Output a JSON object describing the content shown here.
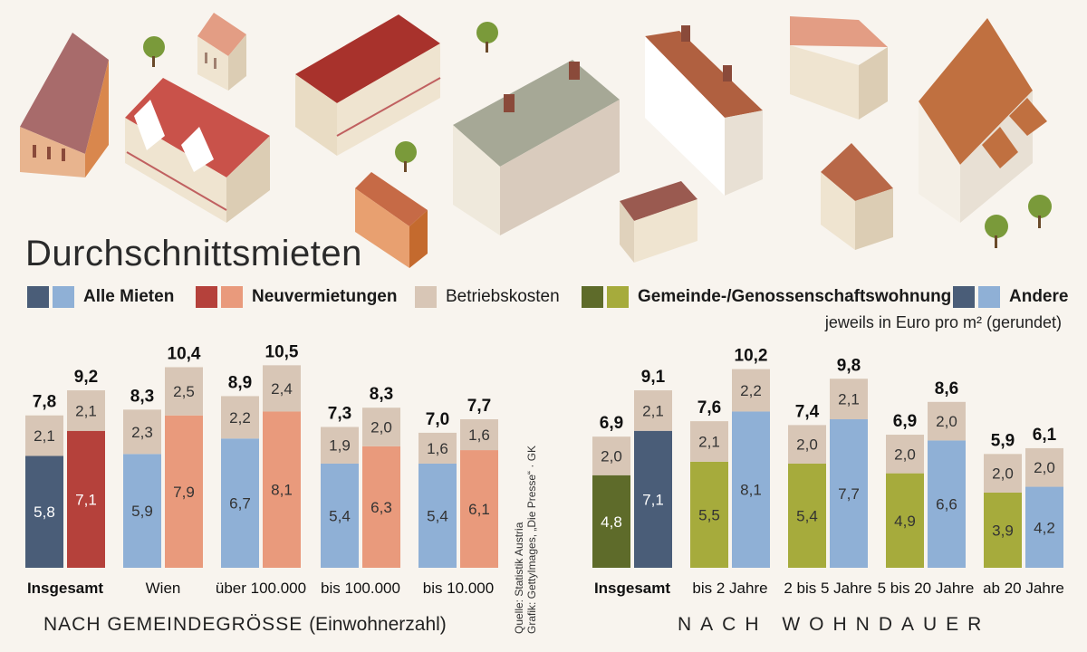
{
  "title": "Durchschnittsmieten",
  "legend": [
    {
      "label": "Alle Mieten",
      "colors": [
        "#4a5d78",
        "#8fb0d6"
      ],
      "bold": true
    },
    {
      "label": "Neuvermietungen",
      "colors": [
        "#b5413b",
        "#e99a7c"
      ],
      "bold": true
    },
    {
      "label": "Betriebskosten",
      "colors": [
        "#d8c6b6"
      ],
      "bold": false
    },
    {
      "label": "Gemeinde-/Genossenschaftswohnung",
      "colors": [
        "#5e6b2a",
        "#a6ab3c"
      ],
      "bold": true
    },
    {
      "label": "Andere",
      "colors": [
        "#4a5d78",
        "#8fb0d6"
      ],
      "bold": true
    }
  ],
  "units_note": "jeweils in Euro pro m² (gerundet)",
  "section1_title": "NACH GEMEINDEGRÖSSE",
  "section1_subtitle": "(Einwohnerzahl)",
  "section2_title": "NACH WOHNDAUER",
  "source_line1": "Quelle: Statistik Austria",
  "source_line2": "Grafik: GettyImages, „Die Presse“ · GK",
  "colors": {
    "betriebskosten": "#d8c6b6",
    "alle_dark": "#4a5d78",
    "alle_light": "#8fb0d6",
    "neu_dark": "#b5413b",
    "neu_light": "#e99a7c",
    "gem_dark": "#5e6b2a",
    "gem_light": "#a6ab3c",
    "andere_dark": "#4a5d78",
    "andere_light": "#8fb0d6"
  },
  "chart_data": [
    {
      "type": "bar",
      "stacked": true,
      "title": "NACH GEMEINDEGRÖSSE (Einwohnerzahl)",
      "categories": [
        "Insgesamt",
        "Wien",
        "über 100.000",
        "bis 100.000",
        "bis 10.000"
      ],
      "category_bold": [
        true,
        false,
        false,
        false,
        false
      ],
      "series": [
        {
          "name": "Alle Mieten",
          "miete": [
            5.8,
            5.9,
            6.7,
            5.4,
            5.4
          ],
          "betriebskosten": [
            2.1,
            2.3,
            2.2,
            1.9,
            1.6
          ],
          "total": [
            "7,8",
            "8,3",
            "8,9",
            "7,3",
            "7,0"
          ],
          "miete_labels": [
            "5,8",
            "5,9",
            "6,7",
            "5,4",
            "5,4"
          ],
          "bk_labels": [
            "2,1",
            "2,3",
            "2,2",
            "1,9",
            "1,6"
          ],
          "color_key": "alle"
        },
        {
          "name": "Neuvermietungen",
          "miete": [
            7.1,
            7.9,
            8.1,
            6.3,
            6.1
          ],
          "betriebskosten": [
            2.1,
            2.5,
            2.4,
            2.0,
            1.6
          ],
          "total": [
            "9,2",
            "10,4",
            "10,5",
            "8,3",
            "7,7"
          ],
          "miete_labels": [
            "7,1",
            "7,9",
            "8,1",
            "6,3",
            "6,1"
          ],
          "bk_labels": [
            "2,1",
            "2,5",
            "2,4",
            "2,0",
            "1,6"
          ],
          "color_key": "neu"
        }
      ]
    },
    {
      "type": "bar",
      "stacked": true,
      "title": "NACH WOHNDAUER",
      "categories": [
        "Insgesamt",
        "bis 2 Jahre",
        "2 bis 5 Jahre",
        "5 bis 20 Jahre",
        "ab 20 Jahre"
      ],
      "category_bold": [
        true,
        false,
        false,
        false,
        false
      ],
      "series": [
        {
          "name": "Gemeinde-/Genossenschaftswohnung",
          "miete": [
            4.8,
            5.5,
            5.4,
            4.9,
            3.9
          ],
          "betriebskosten": [
            2.0,
            2.1,
            2.0,
            2.0,
            2.0
          ],
          "total": [
            "6,9",
            "7,6",
            "7,4",
            "6,9",
            "5,9"
          ],
          "miete_labels": [
            "4,8",
            "5,5",
            "5,4",
            "4,9",
            "3,9"
          ],
          "bk_labels": [
            "2,0",
            "2,1",
            "2,0",
            "2,0",
            "2,0"
          ],
          "color_key": "gem"
        },
        {
          "name": "Andere",
          "miete": [
            7.1,
            8.1,
            7.7,
            6.6,
            4.2
          ],
          "betriebskosten": [
            2.1,
            2.2,
            2.1,
            2.0,
            2.0
          ],
          "total": [
            "9,1",
            "10,2",
            "9,8",
            "8,6",
            "6,1"
          ],
          "miete_labels": [
            "7,1",
            "8,1",
            "7,7",
            "6,6",
            "4,2"
          ],
          "bk_labels": [
            "2,1",
            "2,2",
            "2,1",
            "2,0",
            "2,0"
          ],
          "color_key": "andere"
        }
      ]
    }
  ]
}
